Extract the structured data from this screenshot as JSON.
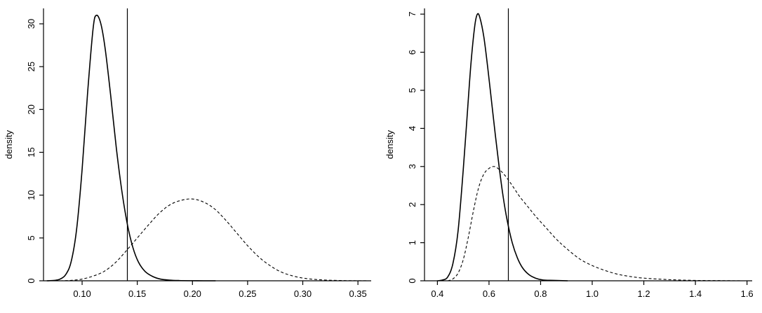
{
  "page": {
    "background": "#ffffff"
  },
  "colors": {
    "axis": "#000000",
    "curve": "#000000",
    "vline": "#000000",
    "zero_baseline": "#cccccc"
  },
  "chart_data": [
    {
      "type": "line",
      "title": "",
      "xlabel": "",
      "ylabel": "density",
      "xlim": [
        0.065,
        0.362
      ],
      "ylim": [
        0,
        31.8
      ],
      "xticks": [
        0.1,
        0.15,
        0.2,
        0.25,
        0.3,
        0.35
      ],
      "xtick_labels": [
        "0.10",
        "0.15",
        "0.20",
        "0.25",
        "0.30",
        "0.35"
      ],
      "yticks": [
        0,
        5,
        10,
        15,
        20,
        25,
        30
      ],
      "ytick_labels": [
        "0",
        "5",
        "10",
        "15",
        "20",
        "25",
        "30"
      ],
      "grid": false,
      "legend": null,
      "vline_x": 0.141,
      "zero_baseline": true,
      "series": [
        {
          "name": "solid-density",
          "style": "solid",
          "color": "#000000",
          "x": [
            0.068,
            0.075,
            0.08,
            0.085,
            0.09,
            0.095,
            0.1,
            0.105,
            0.11,
            0.113,
            0.117,
            0.121,
            0.126,
            0.131,
            0.136,
            0.141,
            0.146,
            0.151,
            0.157,
            0.164,
            0.171,
            0.179,
            0.188,
            0.198,
            0.21,
            0.221
          ],
          "y": [
            0,
            0.05,
            0.2,
            0.7,
            2.2,
            6,
            13,
            22,
            29.5,
            31,
            30,
            27,
            21.5,
            15.5,
            10.5,
            6.6,
            3.9,
            2.2,
            1.1,
            0.5,
            0.2,
            0.08,
            0.03,
            0.01,
            0,
            0
          ]
        },
        {
          "name": "dashed-density",
          "style": "dashed",
          "color": "#000000",
          "x": [
            0.08,
            0.09,
            0.1,
            0.11,
            0.12,
            0.13,
            0.14,
            0.15,
            0.16,
            0.17,
            0.18,
            0.19,
            0.2,
            0.21,
            0.22,
            0.23,
            0.24,
            0.25,
            0.26,
            0.27,
            0.28,
            0.29,
            0.3,
            0.31,
            0.32,
            0.33,
            0.34,
            0.35,
            0.36
          ],
          "y": [
            0,
            0.05,
            0.2,
            0.55,
            1.1,
            2.1,
            3.5,
            5.0,
            6.5,
            7.9,
            8.9,
            9.4,
            9.55,
            9.2,
            8.4,
            7.1,
            5.6,
            4.1,
            2.8,
            1.8,
            1.05,
            0.6,
            0.32,
            0.17,
            0.09,
            0.05,
            0.02,
            0.01,
            0
          ]
        }
      ]
    },
    {
      "type": "line",
      "title": "",
      "xlabel": "",
      "ylabel": "density",
      "xlim": [
        0.35,
        1.62
      ],
      "ylim": [
        0,
        7.15
      ],
      "xticks": [
        0.4,
        0.6,
        0.8,
        1.0,
        1.2,
        1.4,
        1.6
      ],
      "xtick_labels": [
        "0.4",
        "0.6",
        "0.8",
        "1.0",
        "1.2",
        "1.4",
        "1.6"
      ],
      "yticks": [
        0,
        1,
        2,
        3,
        4,
        5,
        6,
        7
      ],
      "ytick_labels": [
        "0",
        "1",
        "2",
        "3",
        "4",
        "5",
        "6",
        "7"
      ],
      "grid": false,
      "legend": null,
      "vline_x": 0.675,
      "zero_baseline": true,
      "series": [
        {
          "name": "solid-density",
          "style": "solid",
          "color": "#000000",
          "x": [
            0.4,
            0.42,
            0.44,
            0.46,
            0.48,
            0.5,
            0.515,
            0.53,
            0.545,
            0.555,
            0.565,
            0.58,
            0.595,
            0.61,
            0.625,
            0.64,
            0.655,
            0.67,
            0.69,
            0.71,
            0.73,
            0.755,
            0.78,
            0.81,
            0.85,
            0.905
          ],
          "y": [
            0,
            0.02,
            0.1,
            0.45,
            1.3,
            2.9,
            4.3,
            5.7,
            6.7,
            7.0,
            6.9,
            6.4,
            5.6,
            4.7,
            3.8,
            2.95,
            2.2,
            1.6,
            1.0,
            0.6,
            0.34,
            0.16,
            0.07,
            0.02,
            0.01,
            0
          ]
        },
        {
          "name": "dashed-density",
          "style": "dashed",
          "color": "#000000",
          "x": [
            0.44,
            0.46,
            0.48,
            0.5,
            0.52,
            0.54,
            0.56,
            0.58,
            0.6,
            0.62,
            0.64,
            0.66,
            0.68,
            0.7,
            0.72,
            0.75,
            0.78,
            0.82,
            0.86,
            0.9,
            0.95,
            1.0,
            1.05,
            1.1,
            1.15,
            1.2,
            1.3,
            1.4,
            1.5,
            1.58
          ],
          "y": [
            0,
            0.05,
            0.2,
            0.55,
            1.15,
            1.85,
            2.45,
            2.8,
            2.95,
            3.0,
            2.92,
            2.78,
            2.6,
            2.4,
            2.2,
            1.95,
            1.7,
            1.4,
            1.1,
            0.85,
            0.58,
            0.4,
            0.27,
            0.17,
            0.11,
            0.07,
            0.03,
            0.01,
            0.005,
            0
          ]
        }
      ]
    }
  ]
}
